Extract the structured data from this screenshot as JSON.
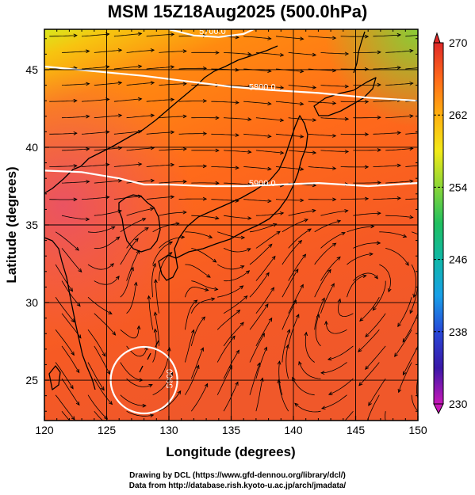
{
  "title": "MSM 15Z18Aug2025 (500.0hPa)",
  "xaxis": {
    "label": "Longitude (degrees)",
    "ticks": [
      120,
      125,
      130,
      135,
      140,
      145,
      150
    ],
    "range": [
      120,
      150
    ]
  },
  "yaxis": {
    "label": "Latitude  (degrees)",
    "ticks": [
      25,
      30,
      35,
      40,
      45
    ],
    "range": [
      22.4,
      47.6
    ]
  },
  "colorbar": {
    "min": 230,
    "max": 270,
    "labels": [
      270,
      262,
      254,
      246,
      238,
      230
    ]
  },
  "contours": [
    {
      "label": "5700.0",
      "lon": 133.5,
      "lat": 47.3
    },
    {
      "label": "5800.0",
      "lon": 137.5,
      "lat": 43.7
    },
    {
      "label": "5900.0",
      "lon": 137.5,
      "lat": 37.5
    },
    {
      "label": "5900",
      "lon": 130.3,
      "lat": 25.1
    }
  ],
  "credit": {
    "line1": "Drawing by DCL (https://www.gfd-dennou.org/library/dcl/)",
    "line2": "Data from http://database.rish.kyoto-u.ac.jp/arch/jmadata/"
  }
}
